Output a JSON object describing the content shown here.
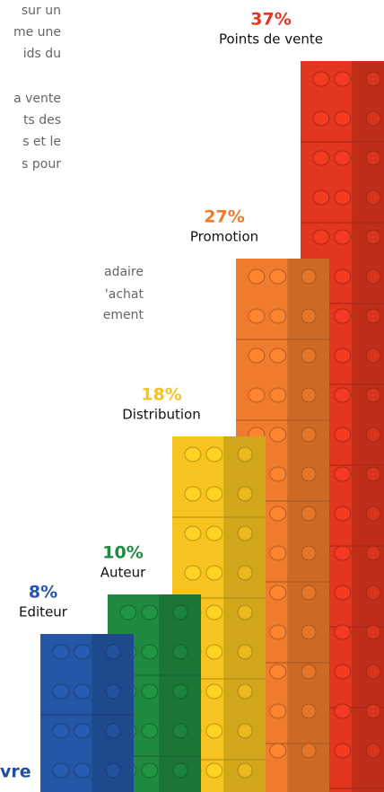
{
  "text": {
    "paragraphs": [
      [
        "sur un",
        "me une",
        "ids du"
      ],
      [
        "a vente",
        "ts des",
        "s et le",
        "s pour"
      ],
      [
        "adaire",
        "'achat",
        "ement"
      ]
    ],
    "footer": "vre"
  },
  "chart_data": {
    "type": "brick-bar",
    "categories": [
      "Editeur",
      "Auteur",
      "Distribution",
      "Promotion",
      "Points de vente"
    ],
    "values": [
      8,
      10,
      18,
      27,
      37
    ],
    "value_labels": [
      "8%",
      "10%",
      "18%",
      "27%",
      "37%"
    ],
    "colors": [
      "#2456a6",
      "#1f8a3f",
      "#f6c320",
      "#f07b2c",
      "#e2361f"
    ]
  }
}
